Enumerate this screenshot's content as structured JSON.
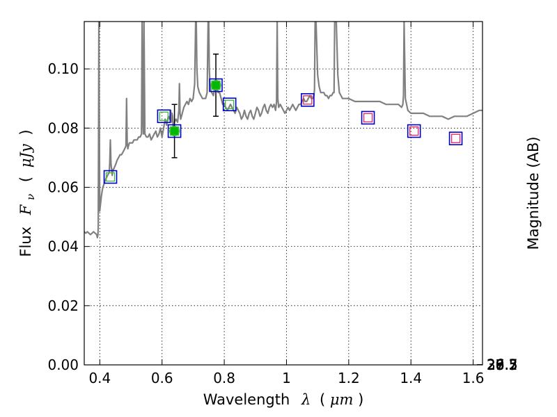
{
  "chart_data": {
    "type": "scatter",
    "xlabel": "Wavelength",
    "xlabel_symbol": "λ",
    "xlabel_unit_open": "(",
    "xlabel_unit": "μm",
    "xlabel_unit_close": ")",
    "ylabel": "Flux",
    "ylabel_symbol": "F",
    "ylabel_subscript": "ν",
    "ylabel_unit_open": "(",
    "ylabel_unit": "μJy",
    "ylabel_unit_close": ")",
    "y2label": "Magnitude (AB)",
    "xlim": [
      0.35,
      1.63
    ],
    "ylim": [
      0.0,
      0.116
    ],
    "grid": true,
    "x_ticks": [
      0.4,
      0.6,
      0.8,
      1.0,
      1.2,
      1.4,
      1.6
    ],
    "x_tick_labels": [
      "0.4",
      "0.6",
      "0.8",
      "1",
      "1.2",
      "1.4",
      "1.6"
    ],
    "y_ticks": [
      0.0,
      0.02,
      0.04,
      0.06,
      0.08,
      0.1
    ],
    "y_tick_labels": [
      "0.00",
      "0.02",
      "0.04",
      "0.06",
      "0.08",
      "0.10"
    ],
    "magnitude_ticks": [
      26.3,
      26.5,
      26.7,
      27,
      27.2,
      27.5,
      28,
      28.5,
      29,
      30
    ],
    "magnitude_tick_labels": [
      "26.3",
      "26.5",
      "26.7",
      "27",
      "27.2",
      "27.5",
      "28",
      "28.5",
      "29",
      "30"
    ],
    "colors": {
      "spectrum": "#808080",
      "observed": "#00b800",
      "errorbar": "#000000",
      "box": "#0000cc",
      "model_green": "#44bb44",
      "model_red": "#e0306a"
    },
    "series": [
      {
        "kind": "model-spectrum",
        "color": "#808080",
        "x": [
          0.35,
          0.355,
          0.36,
          0.365,
          0.37,
          0.375,
          0.38,
          0.385,
          0.39,
          0.392,
          0.394,
          0.395,
          0.396,
          0.397,
          0.398,
          0.4,
          0.402,
          0.405,
          0.408,
          0.41,
          0.413,
          0.416,
          0.42,
          0.425,
          0.43,
          0.432,
          0.434,
          0.436,
          0.438,
          0.44,
          0.442,
          0.444,
          0.448,
          0.452,
          0.455,
          0.46,
          0.465,
          0.47,
          0.475,
          0.48,
          0.484,
          0.486,
          0.488,
          0.49,
          0.492,
          0.495,
          0.5,
          0.505,
          0.51,
          0.515,
          0.52,
          0.525,
          0.53,
          0.534,
          0.536,
          0.538,
          0.54,
          0.542,
          0.545,
          0.55,
          0.555,
          0.56,
          0.565,
          0.57,
          0.575,
          0.58,
          0.585,
          0.59,
          0.595,
          0.6,
          0.605,
          0.61,
          0.615,
          0.62,
          0.625,
          0.628,
          0.63,
          0.632,
          0.634,
          0.636,
          0.64,
          0.645,
          0.65,
          0.654,
          0.656,
          0.658,
          0.66,
          0.665,
          0.67,
          0.675,
          0.68,
          0.685,
          0.69,
          0.695,
          0.7,
          0.705,
          0.708,
          0.71,
          0.712,
          0.715,
          0.72,
          0.725,
          0.73,
          0.735,
          0.74,
          0.745,
          0.748,
          0.75,
          0.752,
          0.755,
          0.76,
          0.765,
          0.77,
          0.775,
          0.78,
          0.785,
          0.79,
          0.795,
          0.8,
          0.805,
          0.81,
          0.815,
          0.82,
          0.825,
          0.83,
          0.835,
          0.84,
          0.845,
          0.85,
          0.855,
          0.86,
          0.865,
          0.87,
          0.875,
          0.88,
          0.885,
          0.89,
          0.895,
          0.9,
          0.905,
          0.91,
          0.915,
          0.92,
          0.925,
          0.93,
          0.935,
          0.94,
          0.945,
          0.95,
          0.955,
          0.96,
          0.965,
          0.968,
          0.97,
          0.972,
          0.975,
          0.98,
          0.985,
          0.99,
          0.995,
          1.0,
          1.005,
          1.01,
          1.015,
          1.02,
          1.025,
          1.03,
          1.035,
          1.04,
          1.045,
          1.05,
          1.055,
          1.06,
          1.065,
          1.07,
          1.075,
          1.08,
          1.085,
          1.088,
          1.09,
          1.092,
          1.095,
          1.1,
          1.105,
          1.11,
          1.115,
          1.12,
          1.125,
          1.13,
          1.135,
          1.14,
          1.145,
          1.15,
          1.153,
          1.155,
          1.16,
          1.165,
          1.17,
          1.175,
          1.18,
          1.2,
          1.22,
          1.24,
          1.26,
          1.28,
          1.3,
          1.32,
          1.34,
          1.36,
          1.37,
          1.374,
          1.376,
          1.378,
          1.382,
          1.39,
          1.4,
          1.42,
          1.44,
          1.46,
          1.48,
          1.5,
          1.52,
          1.54,
          1.56,
          1.58,
          1.6,
          1.62,
          1.63
        ],
        "y": [
          0.045,
          0.0445,
          0.045,
          0.0445,
          0.044,
          0.0445,
          0.045,
          0.0445,
          0.044,
          0.043,
          0.044,
          0.047,
          0.08,
          0.116,
          0.09,
          0.052,
          0.054,
          0.057,
          0.059,
          0.06,
          0.061,
          0.062,
          0.063,
          0.064,
          0.065,
          0.068,
          0.076,
          0.068,
          0.066,
          0.064,
          0.066,
          0.066,
          0.067,
          0.068,
          0.069,
          0.07,
          0.071,
          0.071,
          0.072,
          0.073,
          0.074,
          0.09,
          0.075,
          0.073,
          0.074,
          0.075,
          0.075,
          0.075,
          0.076,
          0.076,
          0.076,
          0.077,
          0.077,
          0.078,
          0.116,
          0.084,
          0.078,
          0.116,
          0.078,
          0.077,
          0.077,
          0.078,
          0.076,
          0.077,
          0.078,
          0.079,
          0.077,
          0.078,
          0.08,
          0.077,
          0.08,
          0.083,
          0.081,
          0.084,
          0.083,
          0.086,
          0.082,
          0.085,
          0.084,
          0.08,
          0.082,
          0.083,
          0.082,
          0.086,
          0.095,
          0.085,
          0.083,
          0.085,
          0.087,
          0.088,
          0.089,
          0.088,
          0.09,
          0.089,
          0.09,
          0.095,
          0.116,
          0.116,
          0.1,
          0.094,
          0.092,
          0.091,
          0.09,
          0.09,
          0.09,
          0.092,
          0.116,
          0.116,
          0.1,
          0.093,
          0.092,
          0.091,
          0.094,
          0.095,
          0.092,
          0.092,
          0.09,
          0.088,
          0.088,
          0.087,
          0.086,
          0.087,
          0.088,
          0.087,
          0.086,
          0.085,
          0.087,
          0.086,
          0.085,
          0.083,
          0.084,
          0.086,
          0.084,
          0.083,
          0.085,
          0.086,
          0.084,
          0.083,
          0.085,
          0.087,
          0.086,
          0.084,
          0.085,
          0.087,
          0.088,
          0.086,
          0.085,
          0.087,
          0.088,
          0.087,
          0.088,
          0.086,
          0.089,
          0.116,
          0.09,
          0.087,
          0.088,
          0.087,
          0.086,
          0.085,
          0.086,
          0.087,
          0.086,
          0.087,
          0.088,
          0.087,
          0.086,
          0.087,
          0.088,
          0.088,
          0.089,
          0.09,
          0.089,
          0.089,
          0.09,
          0.091,
          0.09,
          0.09,
          0.091,
          0.093,
          0.116,
          0.116,
          0.098,
          0.094,
          0.092,
          0.092,
          0.092,
          0.091,
          0.091,
          0.09,
          0.091,
          0.091,
          0.092,
          0.092,
          0.116,
          0.116,
          0.098,
          0.092,
          0.091,
          0.09,
          0.09,
          0.089,
          0.089,
          0.089,
          0.089,
          0.089,
          0.088,
          0.088,
          0.088,
          0.087,
          0.088,
          0.091,
          0.116,
          0.09,
          0.086,
          0.085,
          0.085,
          0.085,
          0.084,
          0.084,
          0.084,
          0.083,
          0.084,
          0.084,
          0.084,
          0.085,
          0.086,
          0.086
        ]
      },
      {
        "kind": "model-boxes",
        "marker": "square",
        "points": [
          {
            "x": 0.434,
            "y": 0.0635,
            "fill": "#44bb44"
          },
          {
            "x": 0.606,
            "y": 0.084,
            "fill": "#44bb44"
          },
          {
            "x": 0.64,
            "y": 0.079,
            "fill": "#44bb44"
          },
          {
            "x": 0.773,
            "y": 0.0945,
            "fill": "#44bb44"
          },
          {
            "x": 0.817,
            "y": 0.088,
            "fill": "#44bb44"
          },
          {
            "x": 1.068,
            "y": 0.0895,
            "fill": "#e0306a"
          },
          {
            "x": 1.262,
            "y": 0.0835,
            "fill": "#e0306a"
          },
          {
            "x": 1.41,
            "y": 0.079,
            "fill": "#e0306a"
          },
          {
            "x": 1.544,
            "y": 0.0765,
            "fill": "#e0306a"
          }
        ]
      },
      {
        "kind": "observed",
        "marker": "circle",
        "color": "#00b800",
        "points": [
          {
            "x": 0.64,
            "y": 0.079,
            "yerr_low": 0.07,
            "yerr_high": 0.088
          },
          {
            "x": 0.773,
            "y": 0.0945,
            "yerr_low": 0.084,
            "yerr_high": 0.105
          }
        ]
      }
    ]
  }
}
